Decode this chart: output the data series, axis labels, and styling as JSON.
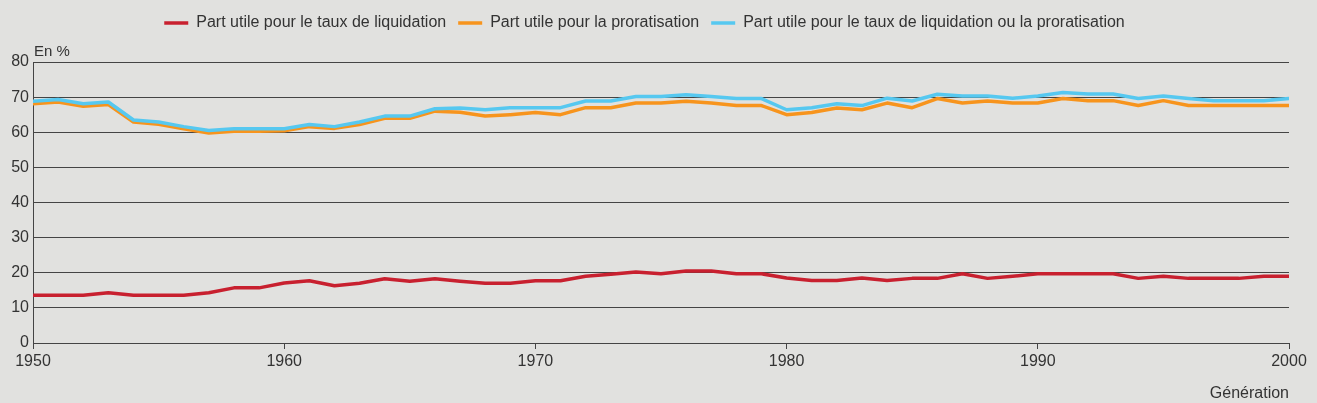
{
  "chart_data": {
    "type": "line",
    "ylabel": "En %",
    "xlabel": "Génération",
    "x": [
      1950,
      1951,
      1952,
      1953,
      1954,
      1955,
      1956,
      1957,
      1958,
      1959,
      1960,
      1961,
      1962,
      1963,
      1964,
      1965,
      1966,
      1967,
      1968,
      1969,
      1970,
      1971,
      1972,
      1973,
      1974,
      1975,
      1976,
      1977,
      1978,
      1979,
      1980,
      1981,
      1982,
      1983,
      1984,
      1985,
      1986,
      1987,
      1988,
      1989,
      1990,
      1991,
      1992,
      1993,
      1994,
      1995,
      1996,
      1997,
      1998,
      1999,
      2000
    ],
    "xlim": [
      1950,
      2000
    ],
    "xticks": [
      1950,
      1960,
      1970,
      1980,
      1990,
      2000
    ],
    "ylim": [
      0,
      80
    ],
    "yticks": [
      0,
      10,
      20,
      30,
      40,
      50,
      60,
      70,
      80
    ],
    "grid": "y",
    "legend": "top",
    "marker": "none",
    "line_style": "solid",
    "series": [
      {
        "name": "Part utile pour le taux de liquidation",
        "color": "#c8202f",
        "values": [
          13.6,
          13.6,
          13.6,
          14.3,
          13.6,
          13.6,
          13.6,
          14.3,
          15.7,
          15.7,
          17.1,
          17.7,
          16.3,
          17.0,
          18.3,
          17.6,
          18.3,
          17.6,
          17.0,
          17.0,
          17.7,
          17.7,
          19.0,
          19.6,
          20.2,
          19.7,
          20.5,
          20.5,
          19.7,
          19.7,
          18.5,
          17.8,
          17.8,
          18.5,
          17.8,
          18.4,
          18.4,
          19.7,
          18.4,
          19.0,
          19.7,
          19.7,
          19.7,
          19.7,
          18.4,
          19.0,
          18.4,
          18.4,
          18.4,
          19.0,
          19.0
        ]
      },
      {
        "name": "Part utile pour la proratisation",
        "color": "#f7941d",
        "values": [
          68.1,
          68.6,
          67.4,
          67.9,
          62.9,
          62.3,
          61.0,
          59.8,
          60.3,
          60.3,
          60.4,
          61.6,
          61.1,
          62.2,
          64.0,
          64.0,
          66.0,
          65.7,
          64.6,
          65.0,
          65.6,
          65.0,
          67.0,
          67.0,
          68.3,
          68.3,
          68.8,
          68.3,
          67.6,
          67.6,
          65.0,
          65.6,
          66.9,
          66.4,
          68.3,
          67.0,
          69.6,
          68.3,
          68.9,
          68.3,
          68.3,
          69.6,
          69.0,
          69.0,
          67.6,
          69.0,
          67.6,
          67.6,
          67.6,
          67.6,
          67.6
        ]
      },
      {
        "name": "Part utile pour le taux de liquidation ou la proratisation",
        "color": "#56c8f0",
        "values": [
          68.8,
          69.3,
          68.1,
          68.6,
          63.5,
          62.9,
          61.6,
          60.5,
          61.0,
          61.0,
          61.0,
          62.2,
          61.6,
          62.9,
          64.6,
          64.6,
          66.7,
          66.9,
          66.4,
          67.0,
          67.0,
          67.0,
          68.9,
          68.9,
          70.2,
          70.2,
          70.7,
          70.2,
          69.6,
          69.6,
          66.4,
          67.0,
          68.1,
          67.6,
          69.7,
          68.9,
          70.8,
          70.3,
          70.3,
          69.7,
          70.3,
          71.3,
          70.9,
          70.9,
          69.6,
          70.3,
          69.6,
          69.0,
          69.0,
          69.0,
          69.6
        ]
      }
    ]
  }
}
